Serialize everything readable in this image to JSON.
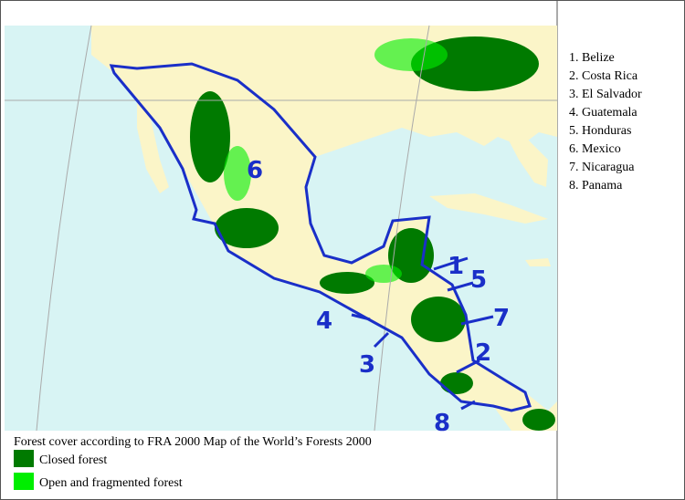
{
  "map": {
    "number_labels": [
      "1",
      "2",
      "3",
      "4",
      "5",
      "6",
      "7",
      "8"
    ]
  },
  "country_list": [
    "1. Belize",
    "2. Costa Rica",
    "3. El Salvador",
    "4. Guatemala",
    "5. Honduras",
    "6. Mexico",
    "7. Nicaragua",
    "8. Panama"
  ],
  "legend": {
    "title": "Forest cover according to FRA 2000 Map of the World’s Forests 2000",
    "items": [
      {
        "label": "Closed forest",
        "color": "#007a00"
      },
      {
        "label": "Open and fragmented forest",
        "color": "#00ee00"
      }
    ]
  }
}
